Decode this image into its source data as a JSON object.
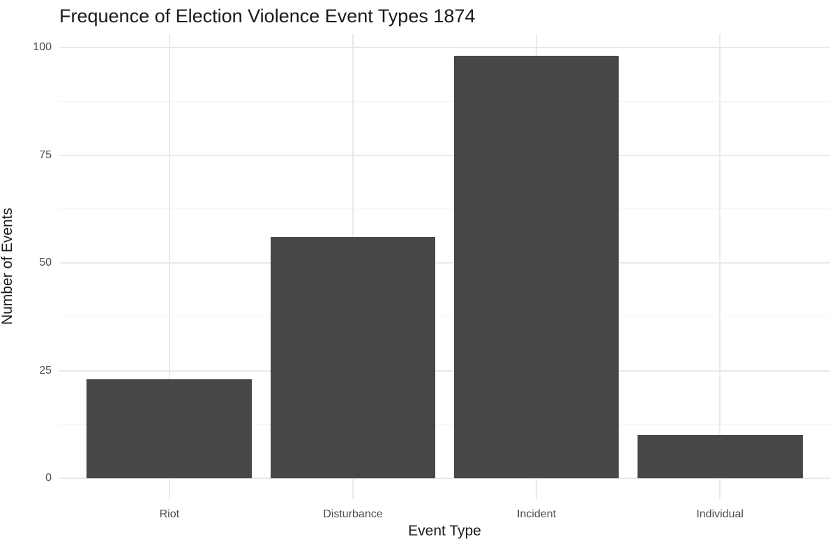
{
  "chart_data": {
    "type": "bar",
    "title": "Frequence of Election Violence Event Types 1874",
    "xlabel": "Event Type",
    "ylabel": "Number of Events",
    "categories": [
      "Riot",
      "Disturbance",
      "Incident",
      "Individual"
    ],
    "values": [
      23,
      56,
      98,
      10
    ],
    "yticks": [
      0,
      25,
      50,
      75,
      100
    ],
    "ylim": [
      0,
      100
    ],
    "grid": "major-and-minor-horizontal, major-vertical-at-category-centers",
    "legend": "none",
    "colors": {
      "bar_fill": "#474747",
      "grid_major": "#E9E9E9",
      "grid_minor": "#F3F3F3",
      "tick_label": "#4D4D4D",
      "title_text": "#1A1A1A",
      "background": "#FFFFFF"
    }
  }
}
